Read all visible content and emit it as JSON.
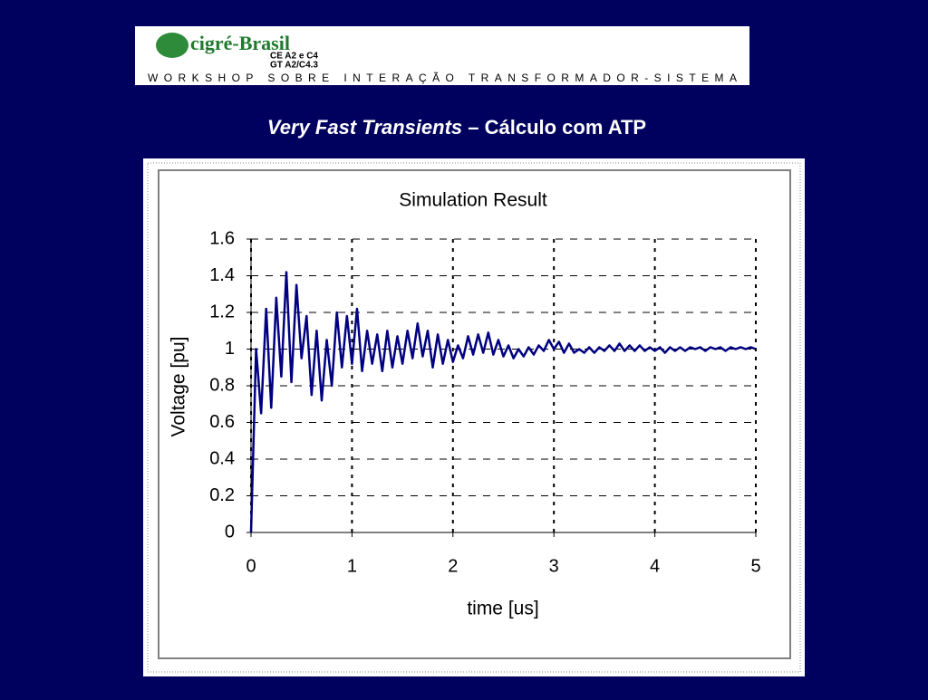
{
  "header": {
    "logo_name": "cigré-Brasil",
    "logo_line1": "CE A2 e C4",
    "logo_line2": "GT A2/C4.3",
    "workshop": "WORKSHOP SOBRE INTERAÇÃO TRANSFORMADOR-SISTEMA"
  },
  "slide_title": {
    "italic": "Very Fast Transients",
    "rest": " – Cálculo com ATP"
  },
  "chart_data": {
    "type": "line",
    "title": "Simulation Result",
    "x_label": "time [us]",
    "y_label": "Voltage [pu]",
    "color": "#000080",
    "grid": true,
    "xlim": [
      0,
      5
    ],
    "xticks": [
      0,
      1,
      2,
      3,
      4,
      5
    ],
    "ylim": [
      0,
      1.6
    ],
    "yticks": [
      0,
      0.2,
      0.4,
      0.6,
      0.8,
      1,
      1.2,
      1.4,
      1.6
    ],
    "x": [
      0,
      0.05,
      0.1,
      0.15,
      0.2,
      0.25,
      0.3,
      0.35,
      0.4,
      0.45,
      0.5,
      0.55,
      0.6,
      0.65,
      0.7,
      0.75,
      0.8,
      0.85,
      0.9,
      0.95,
      1,
      1.05,
      1.1,
      1.15,
      1.2,
      1.25,
      1.3,
      1.35,
      1.4,
      1.45,
      1.5,
      1.55,
      1.6,
      1.65,
      1.7,
      1.75,
      1.8,
      1.85,
      1.9,
      1.95,
      2,
      2.05,
      2.1,
      2.15,
      2.2,
      2.25,
      2.3,
      2.35,
      2.4,
      2.45,
      2.5,
      2.55,
      2.6,
      2.65,
      2.7,
      2.75,
      2.8,
      2.85,
      2.9,
      2.95,
      3,
      3.05,
      3.1,
      3.15,
      3.2,
      3.25,
      3.3,
      3.35,
      3.4,
      3.45,
      3.5,
      3.55,
      3.6,
      3.65,
      3.7,
      3.75,
      3.8,
      3.85,
      3.9,
      3.95,
      4,
      4.05,
      4.1,
      4.15,
      4.2,
      4.25,
      4.3,
      4.35,
      4.4,
      4.45,
      4.5,
      4.55,
      4.6,
      4.65,
      4.7,
      4.75,
      4.8,
      4.85,
      4.9,
      4.95,
      5
    ],
    "values": [
      0,
      1.0,
      0.65,
      1.22,
      0.68,
      1.28,
      0.85,
      1.42,
      0.82,
      1.35,
      0.95,
      1.18,
      0.75,
      1.1,
      0.72,
      1.05,
      0.8,
      1.2,
      0.9,
      1.18,
      0.92,
      1.22,
      0.88,
      1.1,
      0.92,
      1.08,
      0.88,
      1.1,
      0.9,
      1.07,
      0.92,
      1.1,
      0.95,
      1.14,
      0.96,
      1.1,
      0.9,
      1.08,
      0.92,
      1.05,
      0.93,
      1.02,
      0.95,
      1.07,
      0.97,
      1.08,
      0.98,
      1.09,
      0.97,
      1.05,
      0.96,
      1.02,
      0.95,
      1.0,
      0.96,
      1.01,
      0.97,
      1.02,
      0.99,
      1.05,
      1.0,
      1.04,
      0.98,
      1.03,
      0.98,
      1.0,
      0.98,
      1.01,
      0.98,
      1.01,
      0.99,
      1.02,
      0.99,
      1.03,
      0.99,
      1.02,
      0.99,
      1.02,
      0.99,
      1.01,
      0.99,
      1.01,
      0.98,
      1.01,
      0.99,
      1.01,
      0.99,
      1.01,
      1.0,
      1.01,
      0.99,
      1.01,
      1.0,
      1.01,
      0.99,
      1.01,
      1.0,
      1.01,
      1.0,
      1.01,
      1.0
    ]
  }
}
